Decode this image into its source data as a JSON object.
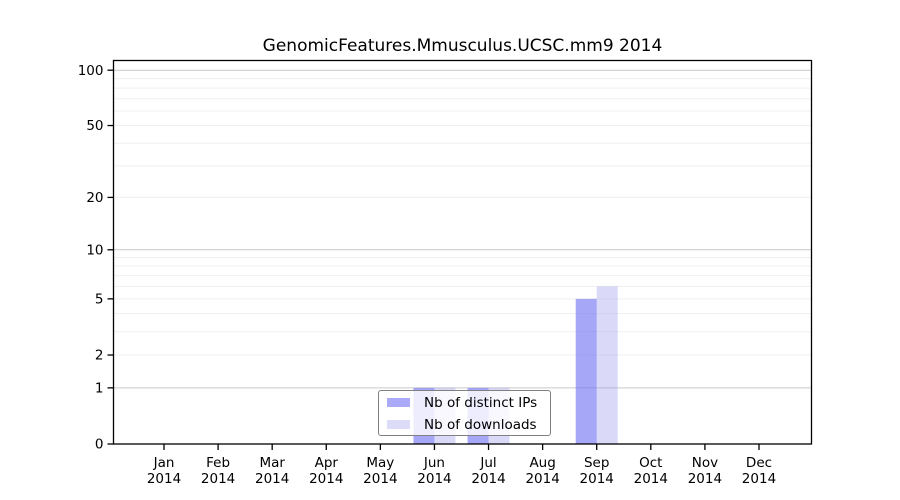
{
  "chart_data": {
    "type": "bar",
    "title": "GenomicFeatures.Mmusculus.UCSC.mm9 2014",
    "categories": [
      "Jan",
      "Feb",
      "Mar",
      "Apr",
      "May",
      "Jun",
      "Jul",
      "Aug",
      "Sep",
      "Oct",
      "Nov",
      "Dec"
    ],
    "year": "2014",
    "series": [
      {
        "name": "Nb of distinct IPs",
        "values": [
          0,
          0,
          0,
          0,
          0,
          1,
          1,
          0,
          5,
          0,
          0,
          0
        ],
        "color": "#aaaaf8",
        "fill": "rgba(116,116,243,0.63)"
      },
      {
        "name": "Nb of downloads",
        "values": [
          0,
          0,
          0,
          0,
          0,
          1,
          1,
          0,
          6,
          0,
          0,
          0
        ],
        "color": "#dcdcf8",
        "fill": "rgba(152,152,235,0.36)"
      }
    ],
    "yscale": "log10(1+x)",
    "ylim": [
      0,
      113
    ],
    "yticks": [
      0,
      1,
      2,
      5,
      10,
      20,
      50,
      100
    ],
    "gridlines": {
      "minor": [
        2,
        3,
        4,
        5,
        6,
        7,
        8,
        9,
        20,
        30,
        40,
        50,
        60,
        70,
        80,
        90
      ],
      "major": [
        1,
        10,
        100
      ],
      "minor_color": "#efefef",
      "major_color": "#c9c9c9"
    },
    "axis_color": "#000000",
    "legend_position": "bottom-center",
    "grid": "horizontal"
  }
}
